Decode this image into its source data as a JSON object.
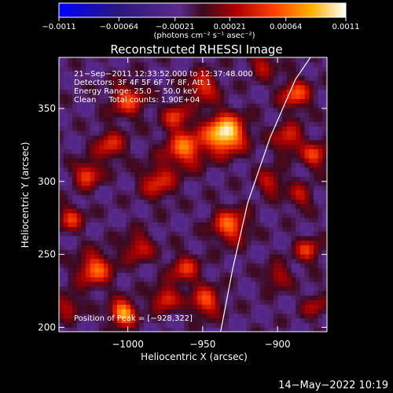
{
  "chart_data": {
    "type": "heatmap",
    "title": "Reconstructed RHESSI Image",
    "xlabel": "Heliocentric X (arcsec)",
    "ylabel": "Heliocentric Y (arcsec)",
    "xlim": [
      -1046,
      -867
    ],
    "ylim": [
      197,
      385
    ],
    "x_ticks": [
      -1000,
      -950,
      -900
    ],
    "x_tick_labels": [
      "−1000",
      "−950",
      "−900"
    ],
    "y_ticks": [
      200,
      250,
      300,
      350
    ],
    "y_tick_labels": [
      "200",
      "250",
      "300",
      "350"
    ],
    "colorbar": {
      "min": -0.0011,
      "max": 0.0011,
      "ticks": [
        -0.0011,
        -0.00064,
        -0.00021,
        0.00021,
        0.00064,
        0.0011
      ],
      "tick_labels": [
        "−0.0011",
        "−0.00064",
        "−0.00021",
        "0.00021",
        "0.00064",
        "0.0011"
      ],
      "unit": "(photons cm⁻² s⁻¹ asec⁻²)"
    },
    "info_lines": [
      "21−Sep−2011 12:33:52.000 to 12:37:48.000",
      "Detectors: 3F 4F 5F 6F 7F 8F, Att 1",
      "Energy Range: 25.0 − 50.0 keV",
      "Clean     Total counts: 1.90E+04"
    ],
    "peak": {
      "x": -928,
      "y": 322,
      "label": "Position of Peak = [−928,322]"
    },
    "limb_curve": [
      [
        -938,
        197
      ],
      [
        -930,
        240
      ],
      [
        -920,
        285
      ],
      [
        -905,
        330
      ],
      [
        -888,
        370
      ],
      [
        -878,
        385
      ]
    ],
    "sources": [
      {
        "x": -935,
        "y": 333,
        "amp": 1.0,
        "r": 9
      },
      {
        "x": -962,
        "y": 323,
        "amp": 0.62,
        "r": 9
      },
      {
        "x": -1000,
        "y": 356,
        "amp": 0.5,
        "r": 8
      },
      {
        "x": -1012,
        "y": 325,
        "amp": 0.45,
        "r": 7
      },
      {
        "x": -980,
        "y": 300,
        "amp": 0.45,
        "r": 8
      },
      {
        "x": -1027,
        "y": 305,
        "amp": 0.55,
        "r": 6
      },
      {
        "x": -1038,
        "y": 275,
        "amp": 0.45,
        "r": 6
      },
      {
        "x": -1022,
        "y": 240,
        "amp": 0.6,
        "r": 8
      },
      {
        "x": -993,
        "y": 255,
        "amp": 0.4,
        "r": 7
      },
      {
        "x": -962,
        "y": 240,
        "amp": 0.45,
        "r": 7
      },
      {
        "x": -932,
        "y": 270,
        "amp": 0.6,
        "r": 8
      },
      {
        "x": -948,
        "y": 218,
        "amp": 0.55,
        "r": 7
      },
      {
        "x": -1003,
        "y": 210,
        "amp": 0.8,
        "r": 6
      },
      {
        "x": -975,
        "y": 220,
        "amp": 0.5,
        "r": 6
      },
      {
        "x": -1040,
        "y": 215,
        "amp": 0.35,
        "r": 6
      },
      {
        "x": -888,
        "y": 360,
        "amp": 0.55,
        "r": 7
      },
      {
        "x": -893,
        "y": 330,
        "amp": 0.45,
        "r": 7
      },
      {
        "x": -875,
        "y": 318,
        "amp": 0.5,
        "r": 6
      },
      {
        "x": -905,
        "y": 300,
        "amp": 0.4,
        "r": 6
      },
      {
        "x": -885,
        "y": 290,
        "amp": 0.35,
        "r": 6
      },
      {
        "x": -880,
        "y": 253,
        "amp": 0.45,
        "r": 6
      },
      {
        "x": -900,
        "y": 235,
        "amp": 0.35,
        "r": 6
      },
      {
        "x": -875,
        "y": 215,
        "amp": 0.3,
        "r": 6
      },
      {
        "x": -950,
        "y": 365,
        "amp": 0.5,
        "r": 7
      },
      {
        "x": -968,
        "y": 345,
        "amp": 0.45,
        "r": 6
      },
      {
        "x": -910,
        "y": 380,
        "amp": 0.35,
        "r": 6
      }
    ]
  },
  "footer": {
    "date": "14−May−2022 10:19"
  }
}
